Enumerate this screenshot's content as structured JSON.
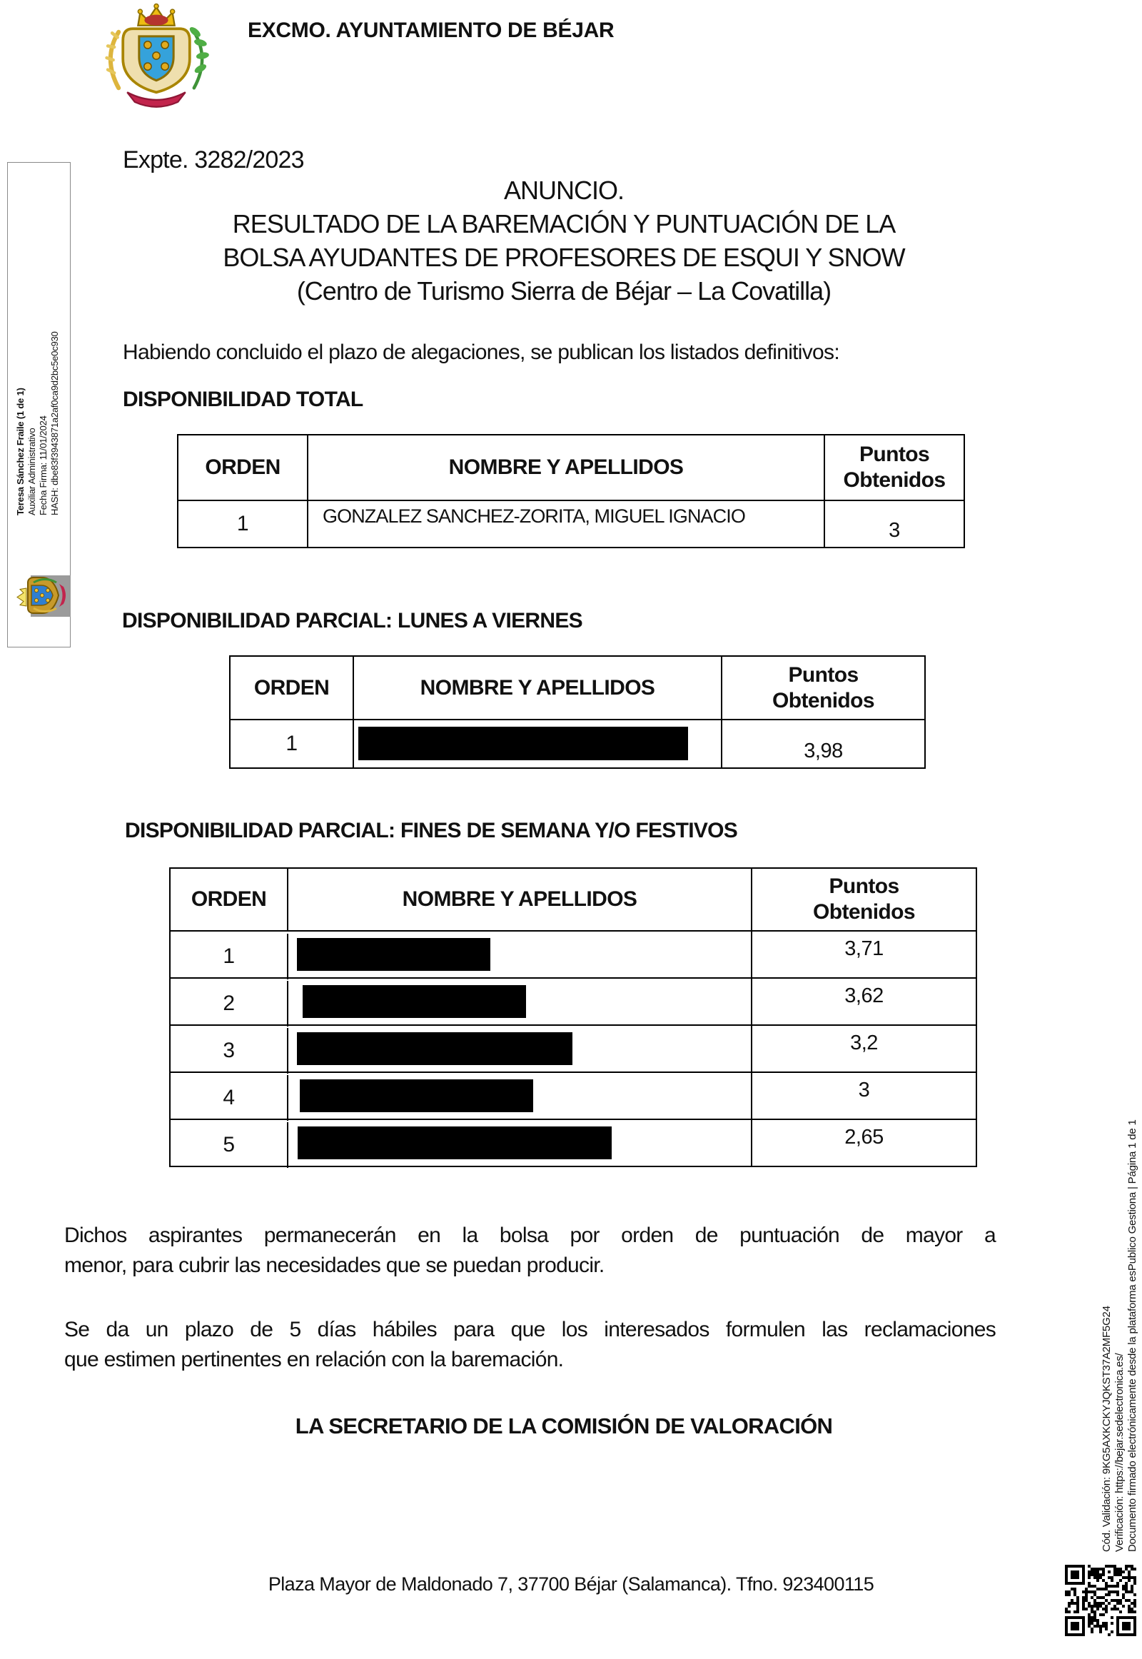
{
  "header": {
    "org_title": "EXCMO. AYUNTAMIENTO DE BÉJAR",
    "coat_of_arms": "bejar-coat-of-arms"
  },
  "expediente": "Expte. 3282/2023",
  "title": {
    "line1": "ANUNCIO.",
    "line2": "RESULTADO DE LA BAREMACIÓN Y PUNTUACIÓN DE LA",
    "line3": "BOLSA AYUDANTES DE PROFESORES DE ESQUI Y SNOW",
    "line4": "(Centro de Turismo Sierra de Béjar – La Covatilla)"
  },
  "intro": "Habiendo concluido el plazo de alegaciones, se publican los listados definitivos:",
  "columns": {
    "orden": "ORDEN",
    "nombre": "NOMBRE Y APELLIDOS",
    "puntos": "Puntos Obtenidos"
  },
  "sections": [
    {
      "heading": "DISPONIBILIDAD TOTAL",
      "rows": [
        {
          "orden": "1",
          "nombre": "GONZALEZ SANCHEZ-ZORITA, MIGUEL IGNACIO",
          "puntos": "3",
          "redacted": false
        }
      ]
    },
    {
      "heading": "DISPONIBILIDAD PARCIAL: LUNES A VIERNES",
      "rows": [
        {
          "orden": "1",
          "nombre": "",
          "puntos": "3,98",
          "redacted": true
        }
      ]
    },
    {
      "heading": "DISPONIBILIDAD PARCIAL: FINES DE SEMANA Y/O FESTIVOS",
      "rows": [
        {
          "orden": "1",
          "nombre": "",
          "puntos": "3,71",
          "redacted": true
        },
        {
          "orden": "2",
          "nombre": "",
          "puntos": "3,62",
          "redacted": true
        },
        {
          "orden": "3",
          "nombre": "",
          "puntos": "3,2",
          "redacted": true
        },
        {
          "orden": "4",
          "nombre": "",
          "puntos": "3",
          "redacted": true
        },
        {
          "orden": "5",
          "nombre": "",
          "puntos": "2,65",
          "redacted": true
        }
      ]
    }
  ],
  "paragraphs": {
    "p1_line1": "Dichos aspirantes permanecerán en la bolsa por orden de puntuación de mayor a",
    "p1_line2": "menor, para cubrir las necesidades que se puedan producir.",
    "p2_line1": "Se da un plazo de 5 días hábiles para que los interesados formulen las reclamaciones",
    "p2_line2": "que estimen pertinentes en relación con la baremación."
  },
  "signature": "LA SECRETARIO DE LA COMISIÓN DE VALORACIÓN",
  "footer": "Plaza Mayor de Maldonado 7, 37700 Béjar (Salamanca). Tfno. 923400115",
  "left_stamp": {
    "line1": "Teresa Sánchez Fraile (1 de 1)",
    "line2": "Auxiliar Administrativo",
    "line3": "Fecha Firma: 11/01/2024",
    "line4": "HASH: dbe83f3943871a2af0ca9d2bc5e0c930"
  },
  "right_stamp": {
    "line1": "Cód. Validación: 9KG5AXKCKYJQKST37A2MF5G24",
    "line2": "Verificación: https://bejar.sedelectronica.es/",
    "line3": "Documento firmado electrónicamente desde la plataforma esPublico Gestiona | Página 1 de 1"
  }
}
